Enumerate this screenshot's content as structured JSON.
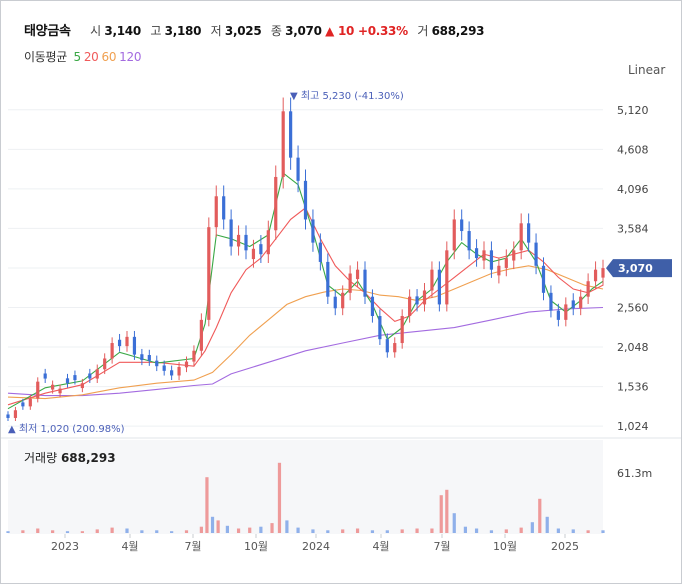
{
  "header": {
    "name": "태양금속",
    "open_label": "시",
    "open": "3,140",
    "high_label": "고",
    "high": "3,180",
    "low_label": "저",
    "low": "3,025",
    "close_label": "종",
    "close": "3,070",
    "change": "▲ 10 +0.33%",
    "volume_label": "거",
    "volume": "688,293"
  },
  "ma_legend": {
    "label": "이동평균",
    "items": [
      {
        "period": "5",
        "color": "#3aa845"
      },
      {
        "period": "20",
        "color": "#f05a5a"
      },
      {
        "period": "60",
        "color": "#f0a050"
      },
      {
        "period": "120",
        "color": "#a36be0"
      }
    ]
  },
  "scale_label": "Linear",
  "volume_panel": {
    "label": "거래량",
    "value": "688,293",
    "max_label": "61.3m"
  },
  "colors": {
    "up": "#e25c5c",
    "down": "#3b6fd6",
    "price_tag": "#3f5fa8",
    "ma5": "#3aa845",
    "ma20": "#f05a5a",
    "ma60": "#f0a050",
    "ma120": "#a36be0"
  },
  "chart_data": {
    "type": "candlestick",
    "y_ticks": [
      "5,120",
      "4,608",
      "4,096",
      "3,584",
      "3,072",
      "2,560",
      "2,048",
      "1,536",
      "1,024"
    ],
    "y_tick_values": [
      5120,
      4608,
      4096,
      3584,
      3072,
      2560,
      2048,
      1536,
      1024
    ],
    "ylim": [
      1000,
      5350
    ],
    "x_ticks": [
      "2023",
      "4월",
      "7월",
      "10월",
      "2024",
      "4월",
      "7월",
      "10월",
      "2025"
    ],
    "last_price_label": "3,070",
    "max_annotation": "▼ 최고 5,230 (-41.30%)",
    "min_annotation": "▲ 최저 1,020 (200.98%)",
    "price_path": [
      [
        0,
        1130,
        "down"
      ],
      [
        4,
        1230,
        "up"
      ],
      [
        8,
        1280,
        "down"
      ],
      [
        12,
        1380,
        "up"
      ],
      [
        16,
        1600,
        "up"
      ],
      [
        20,
        1640,
        "down"
      ],
      [
        24,
        1560,
        "up"
      ],
      [
        28,
        1510,
        "up"
      ],
      [
        32,
        1580,
        "down"
      ],
      [
        36,
        1620,
        "down"
      ],
      [
        40,
        1580,
        "up"
      ],
      [
        44,
        1640,
        "down"
      ],
      [
        48,
        1760,
        "up"
      ],
      [
        52,
        1900,
        "up"
      ],
      [
        56,
        2100,
        "up"
      ],
      [
        60,
        2060,
        "down"
      ],
      [
        64,
        2180,
        "up"
      ],
      [
        68,
        1950,
        "down"
      ],
      [
        72,
        1880,
        "down"
      ],
      [
        76,
        1870,
        "down"
      ],
      [
        80,
        1800,
        "down"
      ],
      [
        84,
        1740,
        "down"
      ],
      [
        88,
        1680,
        "down"
      ],
      [
        92,
        1790,
        "up"
      ],
      [
        96,
        1860,
        "up"
      ],
      [
        100,
        2000,
        "up"
      ],
      [
        104,
        2400,
        "up"
      ],
      [
        108,
        3600,
        "up"
      ],
      [
        112,
        4000,
        "up"
      ],
      [
        116,
        3700,
        "down"
      ],
      [
        120,
        3350,
        "down"
      ],
      [
        124,
        3500,
        "up"
      ],
      [
        128,
        3300,
        "down"
      ],
      [
        132,
        3320,
        "up"
      ],
      [
        136,
        3250,
        "down"
      ],
      [
        140,
        3560,
        "up"
      ],
      [
        144,
        4250,
        "up"
      ],
      [
        148,
        5100,
        "up"
      ],
      [
        152,
        4500,
        "down"
      ],
      [
        156,
        4200,
        "down"
      ],
      [
        160,
        3700,
        "down"
      ],
      [
        164,
        3400,
        "down"
      ],
      [
        168,
        3150,
        "down"
      ],
      [
        172,
        2700,
        "down"
      ],
      [
        176,
        2550,
        "down"
      ],
      [
        180,
        2750,
        "up"
      ],
      [
        184,
        3000,
        "up"
      ],
      [
        188,
        3050,
        "up"
      ],
      [
        192,
        2700,
        "down"
      ],
      [
        196,
        2450,
        "down"
      ],
      [
        200,
        2150,
        "down"
      ],
      [
        204,
        1980,
        "down"
      ],
      [
        208,
        2100,
        "up"
      ],
      [
        212,
        2450,
        "up"
      ],
      [
        216,
        2700,
        "up"
      ],
      [
        220,
        2600,
        "down"
      ],
      [
        224,
        2780,
        "up"
      ],
      [
        228,
        3050,
        "up"
      ],
      [
        232,
        2600,
        "down"
      ],
      [
        236,
        3300,
        "up"
      ],
      [
        240,
        3700,
        "up"
      ],
      [
        244,
        3550,
        "down"
      ],
      [
        248,
        3300,
        "down"
      ],
      [
        252,
        3200,
        "down"
      ],
      [
        256,
        3300,
        "up"
      ],
      [
        260,
        3050,
        "down"
      ],
      [
        264,
        3100,
        "up"
      ],
      [
        268,
        3200,
        "up"
      ],
      [
        272,
        3300,
        "up"
      ],
      [
        276,
        3650,
        "up"
      ],
      [
        280,
        3400,
        "down"
      ],
      [
        284,
        3100,
        "down"
      ],
      [
        288,
        2750,
        "down"
      ],
      [
        292,
        2520,
        "down"
      ],
      [
        296,
        2400,
        "down"
      ],
      [
        300,
        2600,
        "up"
      ],
      [
        304,
        2550,
        "down"
      ],
      [
        308,
        2700,
        "up"
      ],
      [
        312,
        2900,
        "up"
      ],
      [
        316,
        3050,
        "up"
      ],
      [
        320,
        3070,
        "up"
      ]
    ],
    "ma5": [
      [
        0,
        1250
      ],
      [
        20,
        1520
      ],
      [
        40,
        1610
      ],
      [
        60,
        1980
      ],
      [
        80,
        1840
      ],
      [
        100,
        1900
      ],
      [
        106,
        2350
      ],
      [
        112,
        3500
      ],
      [
        120,
        3450
      ],
      [
        130,
        3350
      ],
      [
        140,
        3500
      ],
      [
        148,
        4300
      ],
      [
        156,
        4150
      ],
      [
        164,
        3550
      ],
      [
        172,
        2850
      ],
      [
        180,
        2700
      ],
      [
        188,
        2900
      ],
      [
        196,
        2600
      ],
      [
        204,
        2150
      ],
      [
        212,
        2300
      ],
      [
        220,
        2650
      ],
      [
        228,
        2800
      ],
      [
        236,
        3150
      ],
      [
        244,
        3400
      ],
      [
        252,
        3250
      ],
      [
        260,
        3150
      ],
      [
        268,
        3200
      ],
      [
        276,
        3450
      ],
      [
        284,
        3150
      ],
      [
        292,
        2650
      ],
      [
        300,
        2500
      ],
      [
        308,
        2650
      ],
      [
        314,
        2800
      ],
      [
        320,
        2900
      ]
    ],
    "ma20": [
      [
        0,
        1300
      ],
      [
        20,
        1450
      ],
      [
        40,
        1560
      ],
      [
        60,
        1850
      ],
      [
        80,
        1850
      ],
      [
        100,
        1800
      ],
      [
        106,
        2000
      ],
      [
        112,
        2300
      ],
      [
        120,
        2750
      ],
      [
        128,
        3050
      ],
      [
        136,
        3200
      ],
      [
        144,
        3450
      ],
      [
        152,
        3700
      ],
      [
        160,
        3850
      ],
      [
        168,
        3450
      ],
      [
        176,
        3100
      ],
      [
        184,
        2900
      ],
      [
        192,
        2750
      ],
      [
        200,
        2550
      ],
      [
        208,
        2380
      ],
      [
        216,
        2450
      ],
      [
        224,
        2650
      ],
      [
        232,
        2800
      ],
      [
        240,
        2950
      ],
      [
        248,
        3100
      ],
      [
        256,
        3250
      ],
      [
        264,
        3200
      ],
      [
        272,
        3250
      ],
      [
        280,
        3300
      ],
      [
        288,
        3150
      ],
      [
        296,
        2950
      ],
      [
        304,
        2800
      ],
      [
        312,
        2750
      ],
      [
        320,
        2850
      ]
    ],
    "ma60": [
      [
        0,
        1400
      ],
      [
        20,
        1380
      ],
      [
        40,
        1430
      ],
      [
        60,
        1520
      ],
      [
        80,
        1580
      ],
      [
        100,
        1620
      ],
      [
        110,
        1720
      ],
      [
        120,
        1950
      ],
      [
        130,
        2200
      ],
      [
        140,
        2400
      ],
      [
        150,
        2600
      ],
      [
        160,
        2700
      ],
      [
        170,
        2760
      ],
      [
        180,
        2800
      ],
      [
        190,
        2780
      ],
      [
        200,
        2720
      ],
      [
        210,
        2700
      ],
      [
        220,
        2650
      ],
      [
        230,
        2700
      ],
      [
        240,
        2800
      ],
      [
        250,
        2900
      ],
      [
        260,
        3000
      ],
      [
        270,
        3060
      ],
      [
        280,
        3100
      ],
      [
        290,
        3050
      ],
      [
        300,
        2950
      ],
      [
        310,
        2850
      ],
      [
        320,
        2800
      ]
    ],
    "ma120": [
      [
        0,
        1450
      ],
      [
        20,
        1420
      ],
      [
        40,
        1420
      ],
      [
        60,
        1450
      ],
      [
        80,
        1500
      ],
      [
        100,
        1550
      ],
      [
        110,
        1570
      ],
      [
        120,
        1700
      ],
      [
        140,
        1850
      ],
      [
        160,
        2000
      ],
      [
        180,
        2100
      ],
      [
        200,
        2200
      ],
      [
        220,
        2250
      ],
      [
        240,
        2300
      ],
      [
        260,
        2400
      ],
      [
        280,
        2500
      ],
      [
        300,
        2540
      ],
      [
        320,
        2560
      ]
    ],
    "volume": [
      [
        0,
        0.02,
        "down"
      ],
      [
        8,
        0.03,
        "up"
      ],
      [
        16,
        0.05,
        "up"
      ],
      [
        24,
        0.03,
        "up"
      ],
      [
        32,
        0.02,
        "down"
      ],
      [
        40,
        0.02,
        "up"
      ],
      [
        48,
        0.04,
        "up"
      ],
      [
        56,
        0.06,
        "up"
      ],
      [
        64,
        0.05,
        "down"
      ],
      [
        72,
        0.03,
        "down"
      ],
      [
        80,
        0.03,
        "down"
      ],
      [
        88,
        0.02,
        "down"
      ],
      [
        96,
        0.03,
        "up"
      ],
      [
        104,
        0.07,
        "up"
      ],
      [
        107,
        0.62,
        "up"
      ],
      [
        110,
        0.18,
        "down"
      ],
      [
        113,
        0.14,
        "up"
      ],
      [
        118,
        0.08,
        "down"
      ],
      [
        124,
        0.05,
        "up"
      ],
      [
        130,
        0.06,
        "up"
      ],
      [
        136,
        0.07,
        "down"
      ],
      [
        142,
        0.11,
        "up"
      ],
      [
        146,
        0.78,
        "up"
      ],
      [
        150,
        0.14,
        "down"
      ],
      [
        156,
        0.06,
        "down"
      ],
      [
        164,
        0.04,
        "down"
      ],
      [
        172,
        0.03,
        "down"
      ],
      [
        180,
        0.04,
        "up"
      ],
      [
        188,
        0.05,
        "up"
      ],
      [
        196,
        0.03,
        "down"
      ],
      [
        204,
        0.03,
        "down"
      ],
      [
        212,
        0.04,
        "up"
      ],
      [
        220,
        0.05,
        "up"
      ],
      [
        228,
        0.05,
        "up"
      ],
      [
        233,
        0.42,
        "up"
      ],
      [
        236,
        0.48,
        "up"
      ],
      [
        240,
        0.22,
        "down"
      ],
      [
        246,
        0.07,
        "down"
      ],
      [
        252,
        0.05,
        "down"
      ],
      [
        260,
        0.03,
        "down"
      ],
      [
        268,
        0.04,
        "up"
      ],
      [
        276,
        0.06,
        "up"
      ],
      [
        282,
        0.12,
        "down"
      ],
      [
        286,
        0.38,
        "up"
      ],
      [
        290,
        0.18,
        "down"
      ],
      [
        296,
        0.05,
        "down"
      ],
      [
        304,
        0.04,
        "down"
      ],
      [
        312,
        0.03,
        "up"
      ],
      [
        320,
        0.03,
        "down"
      ]
    ]
  }
}
